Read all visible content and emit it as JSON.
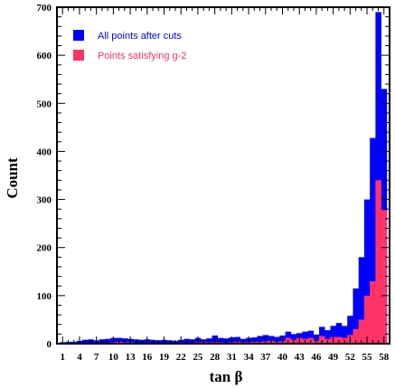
{
  "chart_data": {
    "type": "bar",
    "xlabel": "tan β",
    "ylabel": "Count",
    "ylim": [
      0,
      700
    ],
    "yticks": [
      0,
      100,
      200,
      300,
      400,
      500,
      600,
      700
    ],
    "xlim": [
      0,
      59
    ],
    "xticks": [
      1,
      4,
      7,
      10,
      13,
      16,
      19,
      22,
      25,
      28,
      31,
      34,
      37,
      40,
      43,
      46,
      49,
      52,
      55,
      58
    ],
    "grid": false,
    "legend_position": "top-left",
    "bin_width": 1,
    "series": [
      {
        "name": "All points after cuts",
        "color": "#0000ff",
        "x": [
          1,
          2,
          3,
          4,
          5,
          6,
          7,
          8,
          9,
          10,
          11,
          12,
          13,
          14,
          15,
          16,
          17,
          18,
          19,
          20,
          21,
          22,
          23,
          24,
          25,
          26,
          27,
          28,
          29,
          30,
          31,
          32,
          33,
          34,
          35,
          36,
          37,
          38,
          39,
          40,
          41,
          42,
          43,
          44,
          45,
          46,
          47,
          48,
          49,
          50,
          51,
          52,
          53,
          54,
          55,
          56,
          57,
          58
        ],
        "values": [
          3,
          4,
          4,
          6,
          8,
          9,
          7,
          9,
          10,
          12,
          12,
          11,
          10,
          9,
          8,
          9,
          8,
          7,
          8,
          7,
          6,
          8,
          10,
          9,
          12,
          9,
          11,
          17,
          12,
          11,
          13,
          14,
          10,
          12,
          13,
          16,
          18,
          16,
          14,
          17,
          25,
          20,
          22,
          25,
          27,
          19,
          35,
          28,
          37,
          43,
          37,
          58,
          115,
          180,
          300,
          428,
          690,
          530
        ]
      },
      {
        "name": "Points satisfying g-2",
        "color": "#ff3366",
        "x": [
          1,
          2,
          3,
          4,
          5,
          6,
          7,
          8,
          9,
          10,
          11,
          12,
          13,
          14,
          15,
          16,
          17,
          18,
          19,
          20,
          21,
          22,
          23,
          24,
          25,
          26,
          27,
          28,
          29,
          30,
          31,
          32,
          33,
          34,
          35,
          36,
          37,
          38,
          39,
          40,
          41,
          42,
          43,
          44,
          45,
          46,
          47,
          48,
          49,
          50,
          51,
          52,
          53,
          54,
          55,
          56,
          57,
          58
        ],
        "values": [
          0,
          0,
          0,
          0,
          0,
          0,
          0,
          1,
          2,
          3,
          4,
          3,
          3,
          1,
          1,
          2,
          1,
          1,
          1,
          1,
          1,
          2,
          2,
          2,
          3,
          3,
          3,
          3,
          3,
          2,
          3,
          4,
          3,
          3,
          4,
          4,
          5,
          6,
          4,
          5,
          12,
          8,
          12,
          10,
          12,
          6,
          16,
          10,
          14,
          14,
          12,
          18,
          30,
          50,
          100,
          130,
          340,
          278
        ]
      }
    ]
  }
}
